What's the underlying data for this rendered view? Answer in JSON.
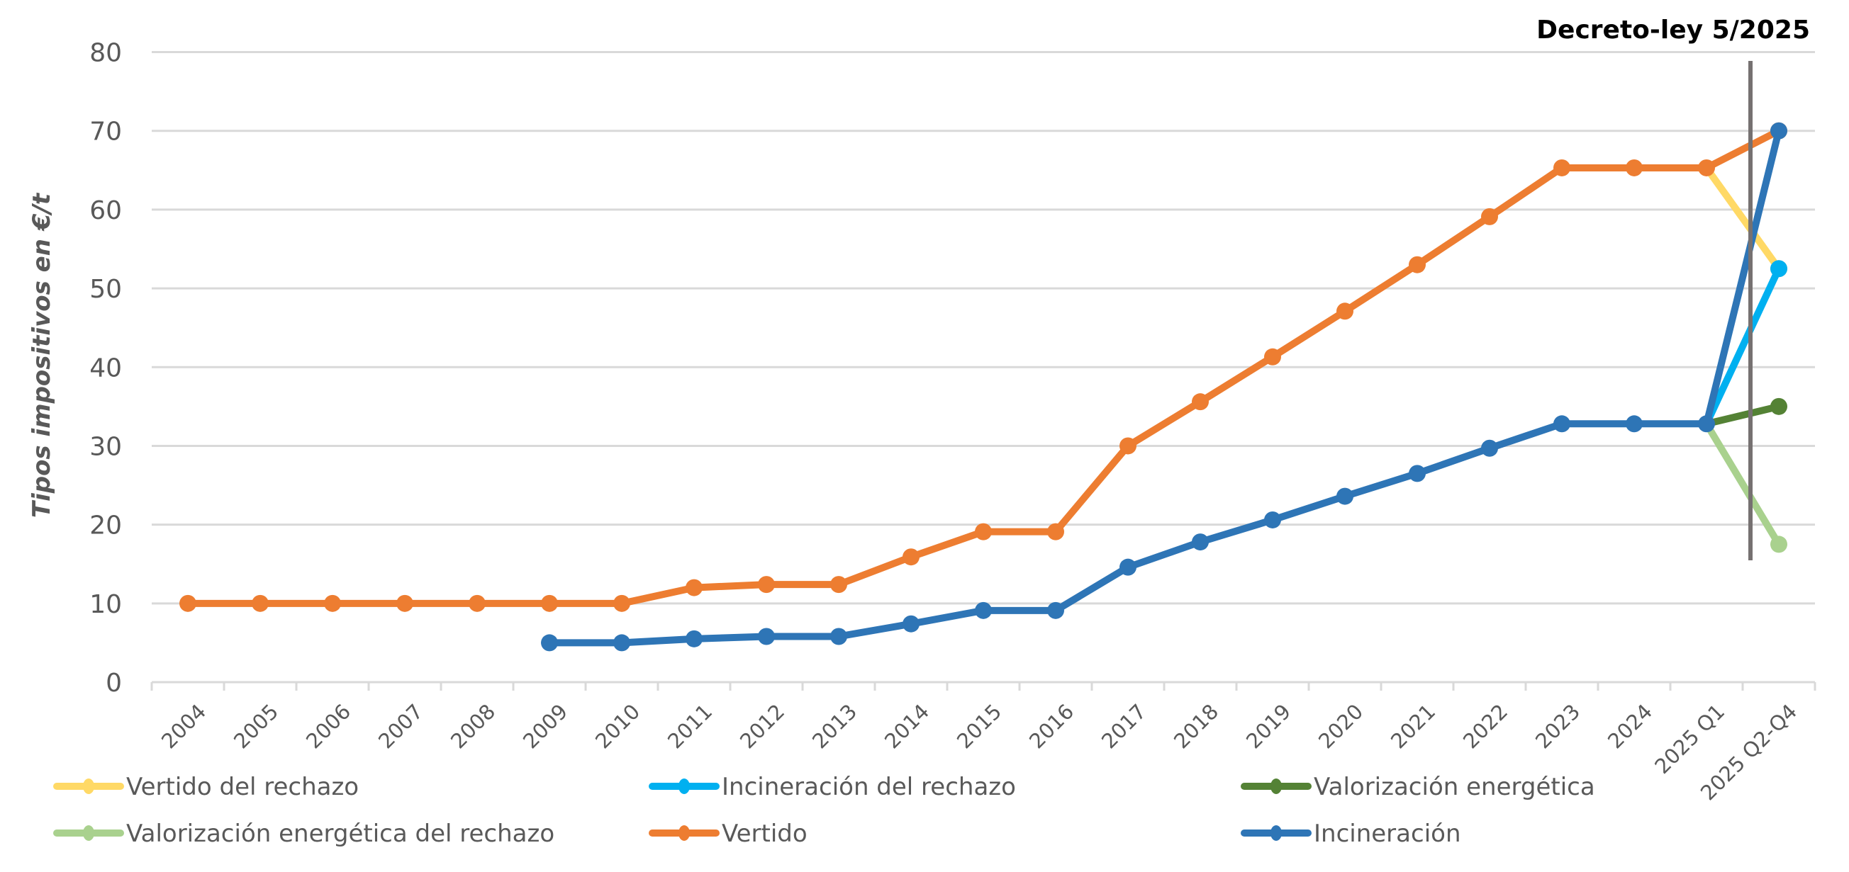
{
  "chart_data": {
    "type": "line",
    "title": "",
    "xlabel": "",
    "ylabel": "Tipos impositivos en €/t",
    "ylim": [
      0,
      80
    ],
    "yticks": [
      0,
      10,
      20,
      30,
      40,
      50,
      60,
      70,
      80
    ],
    "grid": true,
    "legend_position": "bottom",
    "categories": [
      "2004",
      "2005",
      "2006",
      "2007",
      "2008",
      "2009",
      "2010",
      "2011",
      "2012",
      "2013",
      "2014",
      "2015",
      "2016",
      "2017",
      "2018",
      "2019",
      "2020",
      "2021",
      "2022",
      "2023",
      "2024",
      "2025 Q1",
      "2025 Q2-Q4"
    ],
    "series": [
      {
        "name": "Vertido del rechazo",
        "color": "#FFD966",
        "values": [
          null,
          null,
          null,
          null,
          null,
          null,
          null,
          null,
          null,
          null,
          null,
          null,
          null,
          null,
          null,
          null,
          null,
          null,
          null,
          null,
          null,
          65.3,
          52.5
        ]
      },
      {
        "name": "Incineración del rechazo",
        "color": "#00B0F0",
        "values": [
          null,
          null,
          null,
          null,
          null,
          null,
          null,
          null,
          null,
          null,
          null,
          null,
          null,
          null,
          null,
          null,
          null,
          null,
          null,
          null,
          null,
          32.8,
          52.5
        ]
      },
      {
        "name": "Valorización energética",
        "color": "#548235",
        "values": [
          null,
          null,
          null,
          null,
          null,
          null,
          null,
          null,
          null,
          null,
          null,
          null,
          null,
          null,
          null,
          null,
          null,
          null,
          null,
          null,
          null,
          32.8,
          35
        ]
      },
      {
        "name": "Valorización energética del rechazo",
        "color": "#A9D18E",
        "values": [
          null,
          null,
          null,
          null,
          null,
          null,
          null,
          null,
          null,
          null,
          null,
          null,
          null,
          null,
          null,
          null,
          null,
          null,
          null,
          null,
          null,
          32.8,
          17.5
        ]
      },
      {
        "name": "Vertido",
        "color": "#ED7D31",
        "values": [
          10,
          10,
          10,
          10,
          10,
          10,
          10,
          12,
          12.4,
          12.4,
          15.9,
          19.1,
          19.1,
          30,
          35.6,
          41.3,
          47.1,
          53,
          59.1,
          65.3,
          65.3,
          65.3,
          70
        ]
      },
      {
        "name": "Incineración",
        "color": "#2E75B6",
        "values": [
          null,
          null,
          null,
          null,
          null,
          5,
          5,
          5.5,
          5.8,
          5.8,
          7.4,
          9.1,
          9.1,
          14.6,
          17.8,
          20.6,
          23.6,
          26.5,
          29.7,
          32.8,
          32.8,
          32.8,
          70
        ]
      }
    ],
    "annotation": {
      "text": "Decreto-ley 5/2025",
      "marker": "vertical line between 2025 Q1 and 2025 Q2-Q4",
      "color": "#767171"
    }
  }
}
